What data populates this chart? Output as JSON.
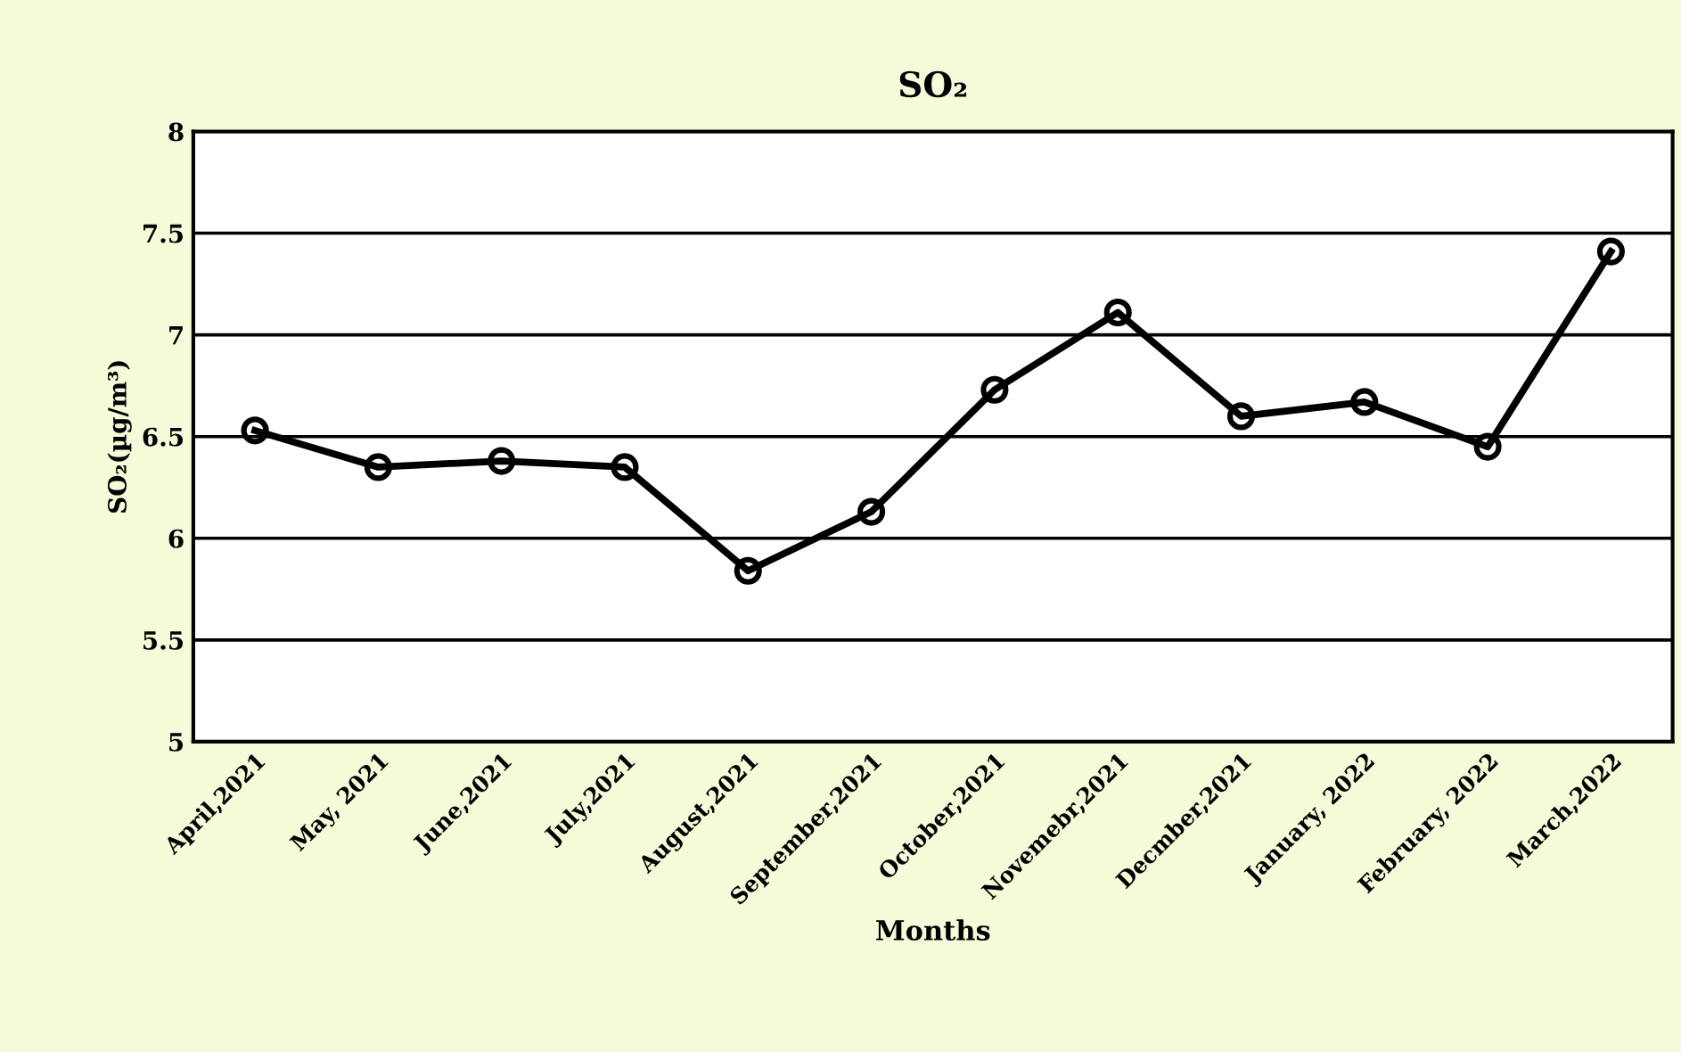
{
  "chart_data": {
    "type": "line",
    "title": "SO₂",
    "xlabel": "Months",
    "ylabel": "SO₂(µg/m³)",
    "categories": [
      "April,2021",
      "May, 2021",
      "June,2021",
      "July,2021",
      "August,2021",
      "September,2021",
      "October,2021",
      "Novemebr,2021",
      "Decmber,2021",
      "January, 2022",
      "February, 2022",
      "March,2022"
    ],
    "series": [
      {
        "color": "#000000",
        "values": [
          6.53,
          6.35,
          6.38,
          6.35,
          5.84,
          6.13,
          6.73,
          7.11,
          6.6,
          6.67,
          6.45,
          7.41
        ]
      }
    ],
    "ylim": [
      5,
      8
    ],
    "yticks": [
      5,
      5.5,
      6,
      6.5,
      7,
      7.5,
      8
    ],
    "grid": "y",
    "legend": false,
    "marker": "circle",
    "line_style": "solid"
  }
}
